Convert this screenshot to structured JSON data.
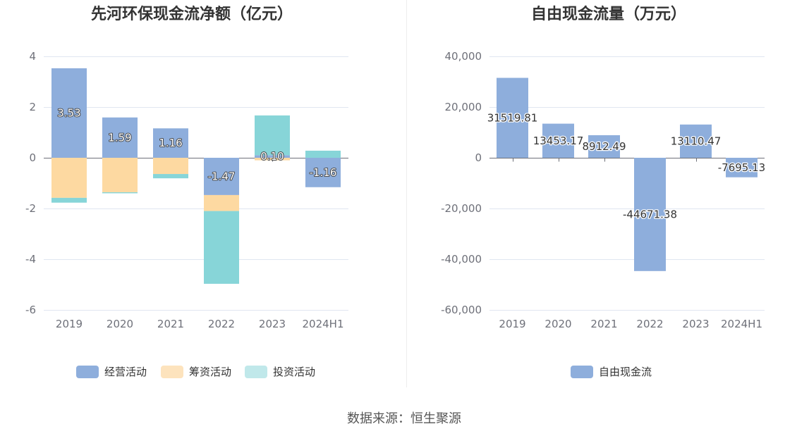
{
  "chart_data": [
    {
      "type": "bar",
      "stacked": true,
      "title": "先河环保现金流净额（亿元）",
      "categories": [
        "2019",
        "2020",
        "2021",
        "2022",
        "2023",
        "2024H1"
      ],
      "ylim": [
        -6,
        4
      ],
      "yticks": [
        4,
        2,
        0,
        -2,
        -4,
        -6
      ],
      "ytick_labels": [
        "4",
        "2",
        "0",
        "-2",
        "-4",
        "-6"
      ],
      "grid": true,
      "legend_position": "bottom",
      "series": [
        {
          "name": "经营活动",
          "values": [
            3.53,
            1.59,
            1.16,
            -1.47,
            0.1,
            -1.16
          ],
          "data_labels": [
            "3.53",
            "1.59",
            "1.16",
            "-1.47",
            "0.10",
            "-1.16"
          ],
          "color": "#8eaedc",
          "legend_color": "#8eaedc"
        },
        {
          "name": "筹资活动",
          "values": [
            -1.58,
            -1.36,
            -0.64,
            -0.63,
            -0.1,
            0
          ],
          "color": "#fdd9a1",
          "legend_color": "#fde3bd"
        },
        {
          "name": "投资活动",
          "values": [
            -0.19,
            -0.04,
            -0.17,
            -2.87,
            1.57,
            0.28
          ],
          "color": "#87d5d8",
          "legend_color": "#c0e8ea"
        }
      ]
    },
    {
      "type": "bar",
      "title": "自由现金流量（万元）",
      "categories": [
        "2019",
        "2020",
        "2021",
        "2022",
        "2023",
        "2024H1"
      ],
      "ylim": [
        -60000,
        40000
      ],
      "yticks": [
        40000,
        20000,
        0,
        -20000,
        -40000,
        -60000
      ],
      "ytick_labels": [
        "40,000",
        "20,000",
        "0",
        "-20,000",
        "-40,000",
        "-60,000"
      ],
      "grid": true,
      "legend_position": "bottom",
      "series": [
        {
          "name": "自由现金流",
          "values": [
            31519.81,
            13453.17,
            8912.49,
            -44671.38,
            13110.47,
            -7695.13
          ],
          "color": "#8eaedc",
          "legend_color": "#8eaedc"
        }
      ]
    }
  ],
  "source_note": "数据来源：恒生聚源"
}
